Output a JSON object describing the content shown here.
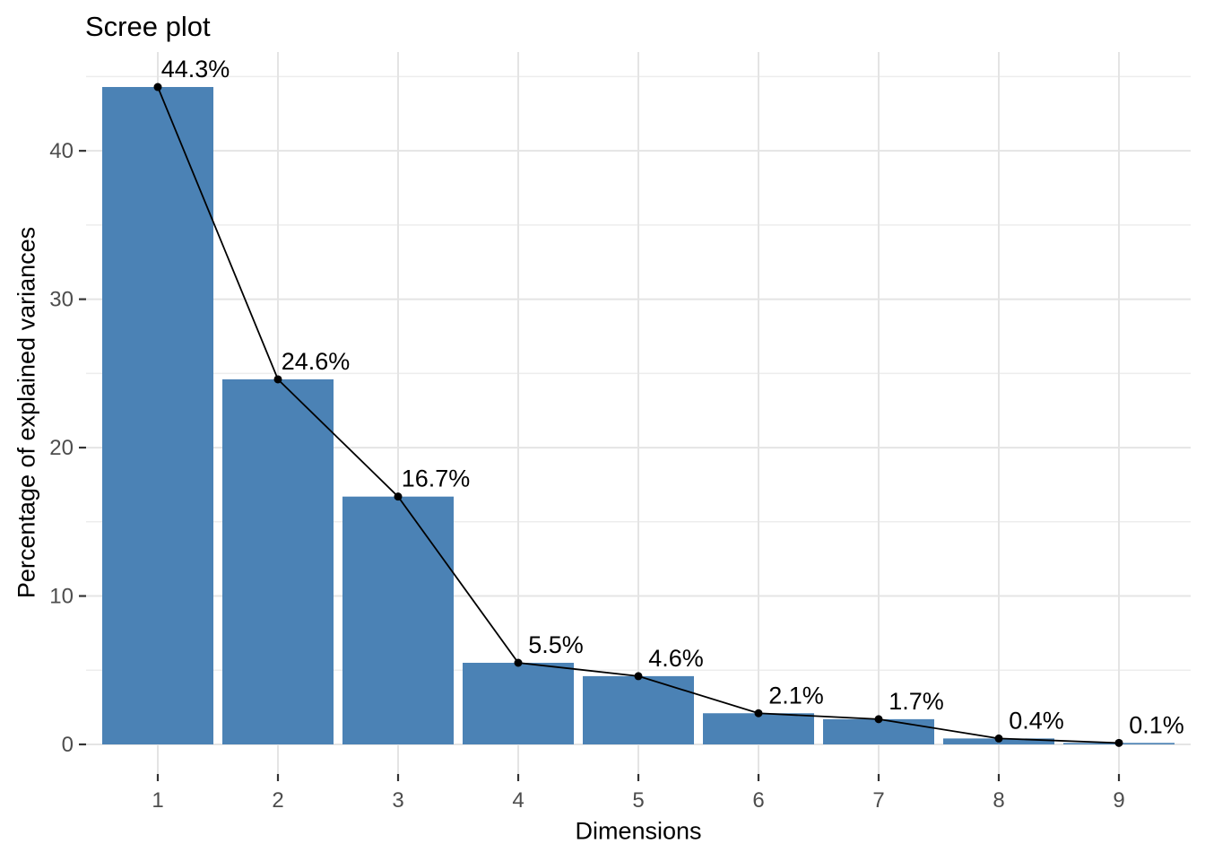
{
  "chart_data": {
    "type": "bar",
    "title": "Scree plot",
    "xlabel": "Dimensions",
    "ylabel": "Percentage of explained variances",
    "categories": [
      "1",
      "2",
      "3",
      "4",
      "5",
      "6",
      "7",
      "8",
      "9"
    ],
    "values": [
      44.3,
      24.6,
      16.7,
      5.5,
      4.6,
      2.1,
      1.7,
      0.4,
      0.1
    ],
    "point_labels": [
      "44.3%",
      "24.6%",
      "16.7%",
      "5.5%",
      "4.6%",
      "2.1%",
      "1.7%",
      "0.4%",
      "0.1%"
    ],
    "yticks_major": [
      0,
      10,
      20,
      30,
      40
    ],
    "yticks_minor": [
      5,
      15,
      25,
      35,
      45
    ],
    "ylim": [
      -2.3,
      46.6
    ],
    "grid": true,
    "legend": "none",
    "overlay": "line+points",
    "colors": {
      "bar": "#4B82B5",
      "line": "#000000",
      "point": "#000000",
      "grid_major": "#E4E4E4",
      "grid_minor": "#EDEDED",
      "axis_tick": "#333333",
      "tick_text": "#4D4D4D",
      "text": "#000000",
      "background": "#FFFFFF"
    }
  }
}
